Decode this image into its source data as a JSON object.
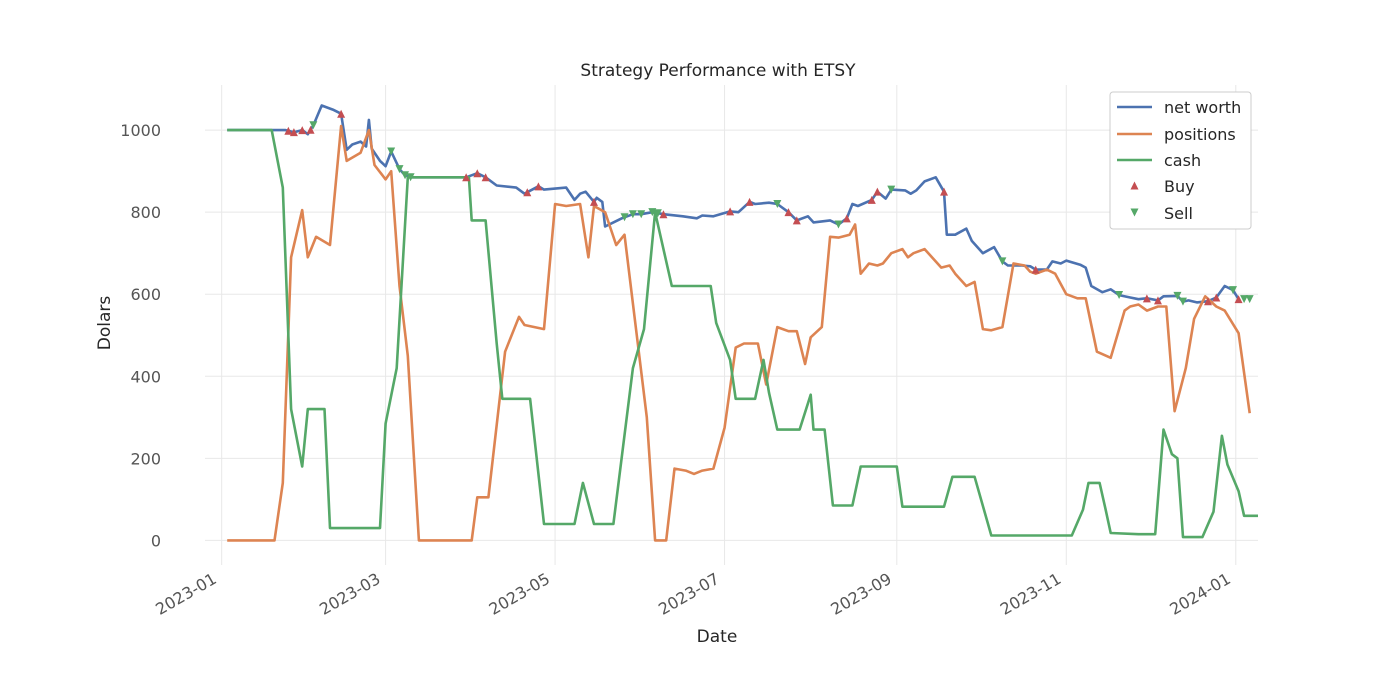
{
  "chart_data": {
    "type": "line",
    "title": "Strategy Performance with ETSY",
    "xlabel": "Date",
    "ylabel": "Dolars",
    "x_ticks": [
      "2023-01",
      "2023-03",
      "2023-05",
      "2023-07",
      "2023-09",
      "2023-11",
      "2024-01"
    ],
    "y_ticks": [
      0,
      200,
      400,
      600,
      800,
      1000
    ],
    "xlim": [
      "2022-12-26",
      "2024-01-09"
    ],
    "ylim": [
      -60,
      1110
    ],
    "grid": true,
    "legend_position": "top-right",
    "colors": {
      "net_worth": "#4c72b0",
      "positions": "#dd8452",
      "cash": "#55a868",
      "buy": "#c44e52",
      "sell": "#55a868"
    },
    "series": [
      {
        "name": "net worth",
        "color": "#4c72b0",
        "points": [
          [
            "2023-01-03",
            1000
          ],
          [
            "2023-01-24",
            1000
          ],
          [
            "2023-01-27",
            995
          ],
          [
            "2023-01-30",
            1000
          ],
          [
            "2023-02-01",
            990
          ],
          [
            "2023-02-03",
            1012
          ],
          [
            "2023-02-06",
            1060
          ],
          [
            "2023-02-10",
            1050
          ],
          [
            "2023-02-13",
            1040
          ],
          [
            "2023-02-15",
            952
          ],
          [
            "2023-02-17",
            965
          ],
          [
            "2023-02-20",
            972
          ],
          [
            "2023-02-22",
            960
          ],
          [
            "2023-02-23",
            1025
          ],
          [
            "2023-02-24",
            955
          ],
          [
            "2023-02-27",
            925
          ],
          [
            "2023-03-01",
            912
          ],
          [
            "2023-03-03",
            948
          ],
          [
            "2023-03-06",
            905
          ],
          [
            "2023-03-08",
            890
          ],
          [
            "2023-03-10",
            885
          ],
          [
            "2023-03-15",
            885
          ],
          [
            "2023-03-27",
            885
          ],
          [
            "2023-03-30",
            885
          ],
          [
            "2023-04-03",
            895
          ],
          [
            "2023-04-06",
            885
          ],
          [
            "2023-04-10",
            865
          ],
          [
            "2023-04-17",
            860
          ],
          [
            "2023-04-20",
            845
          ],
          [
            "2023-04-25",
            863
          ],
          [
            "2023-04-27",
            855
          ],
          [
            "2023-05-05",
            860
          ],
          [
            "2023-05-08",
            830
          ],
          [
            "2023-05-10",
            845
          ],
          [
            "2023-05-12",
            850
          ],
          [
            "2023-05-15",
            825
          ],
          [
            "2023-05-16",
            835
          ],
          [
            "2023-05-18",
            825
          ],
          [
            "2023-05-19",
            765
          ],
          [
            "2023-05-22",
            775
          ],
          [
            "2023-05-25",
            785
          ],
          [
            "2023-05-29",
            795
          ],
          [
            "2023-06-01",
            795
          ],
          [
            "2023-06-05",
            800
          ],
          [
            "2023-06-09",
            795
          ],
          [
            "2023-06-16",
            790
          ],
          [
            "2023-06-21",
            785
          ],
          [
            "2023-06-23",
            792
          ],
          [
            "2023-06-27",
            790
          ],
          [
            "2023-07-03",
            802
          ],
          [
            "2023-07-06",
            800
          ],
          [
            "2023-07-10",
            825
          ],
          [
            "2023-07-12",
            820
          ],
          [
            "2023-07-17",
            823
          ],
          [
            "2023-07-20",
            820
          ],
          [
            "2023-07-24",
            800
          ],
          [
            "2023-07-27",
            780
          ],
          [
            "2023-07-31",
            790
          ],
          [
            "2023-08-02",
            775
          ],
          [
            "2023-08-08",
            780
          ],
          [
            "2023-08-11",
            770
          ],
          [
            "2023-08-14",
            785
          ],
          [
            "2023-08-16",
            820
          ],
          [
            "2023-08-18",
            815
          ],
          [
            "2023-08-23",
            830
          ],
          [
            "2023-08-25",
            850
          ],
          [
            "2023-08-28",
            833
          ],
          [
            "2023-08-30",
            855
          ],
          [
            "2023-09-04",
            853
          ],
          [
            "2023-09-06",
            845
          ],
          [
            "2023-09-08",
            853
          ],
          [
            "2023-09-11",
            875
          ],
          [
            "2023-09-15",
            885
          ],
          [
            "2023-09-18",
            850
          ],
          [
            "2023-09-19",
            745
          ],
          [
            "2023-09-22",
            745
          ],
          [
            "2023-09-26",
            760
          ],
          [
            "2023-09-28",
            730
          ],
          [
            "2023-10-02",
            700
          ],
          [
            "2023-10-06",
            715
          ],
          [
            "2023-10-09",
            680
          ],
          [
            "2023-10-11",
            670
          ],
          [
            "2023-10-16",
            670
          ],
          [
            "2023-10-19",
            668
          ],
          [
            "2023-10-21",
            660
          ],
          [
            "2023-10-25",
            660
          ],
          [
            "2023-10-27",
            680
          ],
          [
            "2023-10-30",
            675
          ],
          [
            "2023-11-01",
            682
          ],
          [
            "2023-11-06",
            672
          ],
          [
            "2023-11-08",
            665
          ],
          [
            "2023-11-10",
            620
          ],
          [
            "2023-11-14",
            605
          ],
          [
            "2023-11-17",
            612
          ],
          [
            "2023-11-20",
            598
          ],
          [
            "2023-11-24",
            592
          ],
          [
            "2023-11-27",
            588
          ],
          [
            "2023-11-30",
            590
          ],
          [
            "2023-12-04",
            585
          ],
          [
            "2023-12-06",
            595
          ],
          [
            "2023-12-11",
            596
          ],
          [
            "2023-12-13",
            582
          ],
          [
            "2023-12-15",
            585
          ],
          [
            "2023-12-18",
            580
          ],
          [
            "2023-12-22",
            583
          ],
          [
            "2023-12-25",
            592
          ],
          [
            "2023-12-28",
            620
          ],
          [
            "2023-12-31",
            610
          ],
          [
            "2024-01-02",
            588
          ]
        ]
      },
      {
        "name": "positions",
        "color": "#dd8452",
        "points": [
          [
            "2023-01-03",
            0
          ],
          [
            "2023-01-20",
            0
          ],
          [
            "2023-01-23",
            140
          ],
          [
            "2023-01-26",
            690
          ],
          [
            "2023-01-30",
            805
          ],
          [
            "2023-02-01",
            690
          ],
          [
            "2023-02-04",
            740
          ],
          [
            "2023-02-09",
            720
          ],
          [
            "2023-02-13",
            1010
          ],
          [
            "2023-02-15",
            925
          ],
          [
            "2023-02-20",
            945
          ],
          [
            "2023-02-23",
            1000
          ],
          [
            "2023-02-25",
            915
          ],
          [
            "2023-03-01",
            880
          ],
          [
            "2023-03-03",
            900
          ],
          [
            "2023-03-06",
            620
          ],
          [
            "2023-03-09",
            450
          ],
          [
            "2023-03-13",
            0
          ],
          [
            "2023-04-01",
            0
          ],
          [
            "2023-04-03",
            105
          ],
          [
            "2023-04-07",
            105
          ],
          [
            "2023-04-13",
            460
          ],
          [
            "2023-04-18",
            545
          ],
          [
            "2023-04-20",
            525
          ],
          [
            "2023-04-27",
            515
          ],
          [
            "2023-05-01",
            820
          ],
          [
            "2023-05-05",
            815
          ],
          [
            "2023-05-10",
            820
          ],
          [
            "2023-05-13",
            690
          ],
          [
            "2023-05-15",
            815
          ],
          [
            "2023-05-19",
            800
          ],
          [
            "2023-05-23",
            720
          ],
          [
            "2023-05-26",
            745
          ],
          [
            "2023-06-03",
            300
          ],
          [
            "2023-06-06",
            0
          ],
          [
            "2023-06-10",
            0
          ],
          [
            "2023-06-13",
            175
          ],
          [
            "2023-06-17",
            170
          ],
          [
            "2023-06-20",
            162
          ],
          [
            "2023-06-23",
            170
          ],
          [
            "2023-06-27",
            175
          ],
          [
            "2023-07-01",
            275
          ],
          [
            "2023-07-05",
            470
          ],
          [
            "2023-07-08",
            480
          ],
          [
            "2023-07-13",
            480
          ],
          [
            "2023-07-16",
            380
          ],
          [
            "2023-07-20",
            520
          ],
          [
            "2023-07-24",
            510
          ],
          [
            "2023-07-27",
            510
          ],
          [
            "2023-07-30",
            430
          ],
          [
            "2023-08-01",
            495
          ],
          [
            "2023-08-05",
            520
          ],
          [
            "2023-08-08",
            740
          ],
          [
            "2023-08-11",
            738
          ],
          [
            "2023-08-15",
            745
          ],
          [
            "2023-08-17",
            770
          ],
          [
            "2023-08-19",
            650
          ],
          [
            "2023-08-22",
            675
          ],
          [
            "2023-08-25",
            670
          ],
          [
            "2023-08-27",
            675
          ],
          [
            "2023-08-30",
            700
          ],
          [
            "2023-09-03",
            710
          ],
          [
            "2023-09-05",
            690
          ],
          [
            "2023-09-07",
            700
          ],
          [
            "2023-09-11",
            710
          ],
          [
            "2023-09-17",
            665
          ],
          [
            "2023-09-20",
            670
          ],
          [
            "2023-09-22",
            650
          ],
          [
            "2023-09-26",
            620
          ],
          [
            "2023-09-29",
            630
          ],
          [
            "2023-10-02",
            515
          ],
          [
            "2023-10-05",
            512
          ],
          [
            "2023-10-09",
            520
          ],
          [
            "2023-10-13",
            675
          ],
          [
            "2023-10-17",
            670
          ],
          [
            "2023-10-19",
            655
          ],
          [
            "2023-10-21",
            650
          ],
          [
            "2023-10-25",
            660
          ],
          [
            "2023-10-28",
            650
          ],
          [
            "2023-11-01",
            600
          ],
          [
            "2023-11-05",
            590
          ],
          [
            "2023-11-08",
            590
          ],
          [
            "2023-11-12",
            460
          ],
          [
            "2023-11-17",
            445
          ],
          [
            "2023-11-22",
            560
          ],
          [
            "2023-11-24",
            570
          ],
          [
            "2023-11-27",
            575
          ],
          [
            "2023-11-30",
            560
          ],
          [
            "2023-12-04",
            570
          ],
          [
            "2023-12-07",
            570
          ],
          [
            "2023-12-10",
            315
          ],
          [
            "2023-12-14",
            420
          ],
          [
            "2023-12-17",
            540
          ],
          [
            "2023-12-21",
            595
          ],
          [
            "2023-12-25",
            570
          ],
          [
            "2023-12-28",
            560
          ],
          [
            "2024-01-02",
            505
          ],
          [
            "2024-01-06",
            310
          ]
        ]
      },
      {
        "name": "cash",
        "color": "#55a868",
        "points": [
          [
            "2023-01-03",
            1000
          ],
          [
            "2023-01-19",
            1000
          ],
          [
            "2023-01-23",
            860
          ],
          [
            "2023-01-26",
            320
          ],
          [
            "2023-01-30",
            180
          ],
          [
            "2023-02-01",
            320
          ],
          [
            "2023-02-07",
            320
          ],
          [
            "2023-02-09",
            30
          ],
          [
            "2023-02-22",
            30
          ],
          [
            "2023-02-27",
            30
          ],
          [
            "2023-03-01",
            285
          ],
          [
            "2023-03-05",
            420
          ],
          [
            "2023-03-09",
            885
          ],
          [
            "2023-03-31",
            885
          ],
          [
            "2023-04-01",
            780
          ],
          [
            "2023-04-06",
            780
          ],
          [
            "2023-04-10",
            480
          ],
          [
            "2023-04-12",
            345
          ],
          [
            "2023-04-22",
            345
          ],
          [
            "2023-04-27",
            40
          ],
          [
            "2023-05-08",
            40
          ],
          [
            "2023-05-11",
            140
          ],
          [
            "2023-05-15",
            40
          ],
          [
            "2023-05-22",
            40
          ],
          [
            "2023-05-29",
            420
          ],
          [
            "2023-06-02",
            515
          ],
          [
            "2023-06-06",
            800
          ],
          [
            "2023-06-12",
            620
          ],
          [
            "2023-06-26",
            620
          ],
          [
            "2023-06-28",
            530
          ],
          [
            "2023-07-03",
            440
          ],
          [
            "2023-07-05",
            345
          ],
          [
            "2023-07-12",
            345
          ],
          [
            "2023-07-15",
            440
          ],
          [
            "2023-07-17",
            360
          ],
          [
            "2023-07-20",
            270
          ],
          [
            "2023-07-28",
            270
          ],
          [
            "2023-08-01",
            355
          ],
          [
            "2023-08-02",
            270
          ],
          [
            "2023-08-06",
            270
          ],
          [
            "2023-08-09",
            85
          ],
          [
            "2023-08-16",
            85
          ],
          [
            "2023-08-19",
            180
          ],
          [
            "2023-08-29",
            180
          ],
          [
            "2023-09-01",
            180
          ],
          [
            "2023-09-03",
            82
          ],
          [
            "2023-09-18",
            82
          ],
          [
            "2023-09-21",
            155
          ],
          [
            "2023-09-29",
            155
          ],
          [
            "2023-10-05",
            12
          ],
          [
            "2023-10-29",
            12
          ],
          [
            "2023-11-03",
            12
          ],
          [
            "2023-11-07",
            75
          ],
          [
            "2023-11-09",
            140
          ],
          [
            "2023-11-13",
            140
          ],
          [
            "2023-11-15",
            80
          ],
          [
            "2023-11-17",
            18
          ],
          [
            "2023-11-27",
            15
          ],
          [
            "2023-12-03",
            15
          ],
          [
            "2023-12-06",
            270
          ],
          [
            "2023-12-09",
            210
          ],
          [
            "2023-12-11",
            200
          ],
          [
            "2023-12-13",
            8
          ],
          [
            "2023-12-20",
            8
          ],
          [
            "2023-12-24",
            70
          ],
          [
            "2023-12-27",
            255
          ],
          [
            "2023-12-29",
            185
          ],
          [
            "2024-01-02",
            120
          ],
          [
            "2024-01-04",
            60
          ],
          [
            "2024-01-09",
            60
          ]
        ]
      }
    ],
    "markers": [
      {
        "name": "Buy",
        "color": "#c44e52",
        "shape": "triangle-up"
      },
      {
        "name": "Sell",
        "color": "#55a868",
        "shape": "triangle-down"
      }
    ]
  }
}
